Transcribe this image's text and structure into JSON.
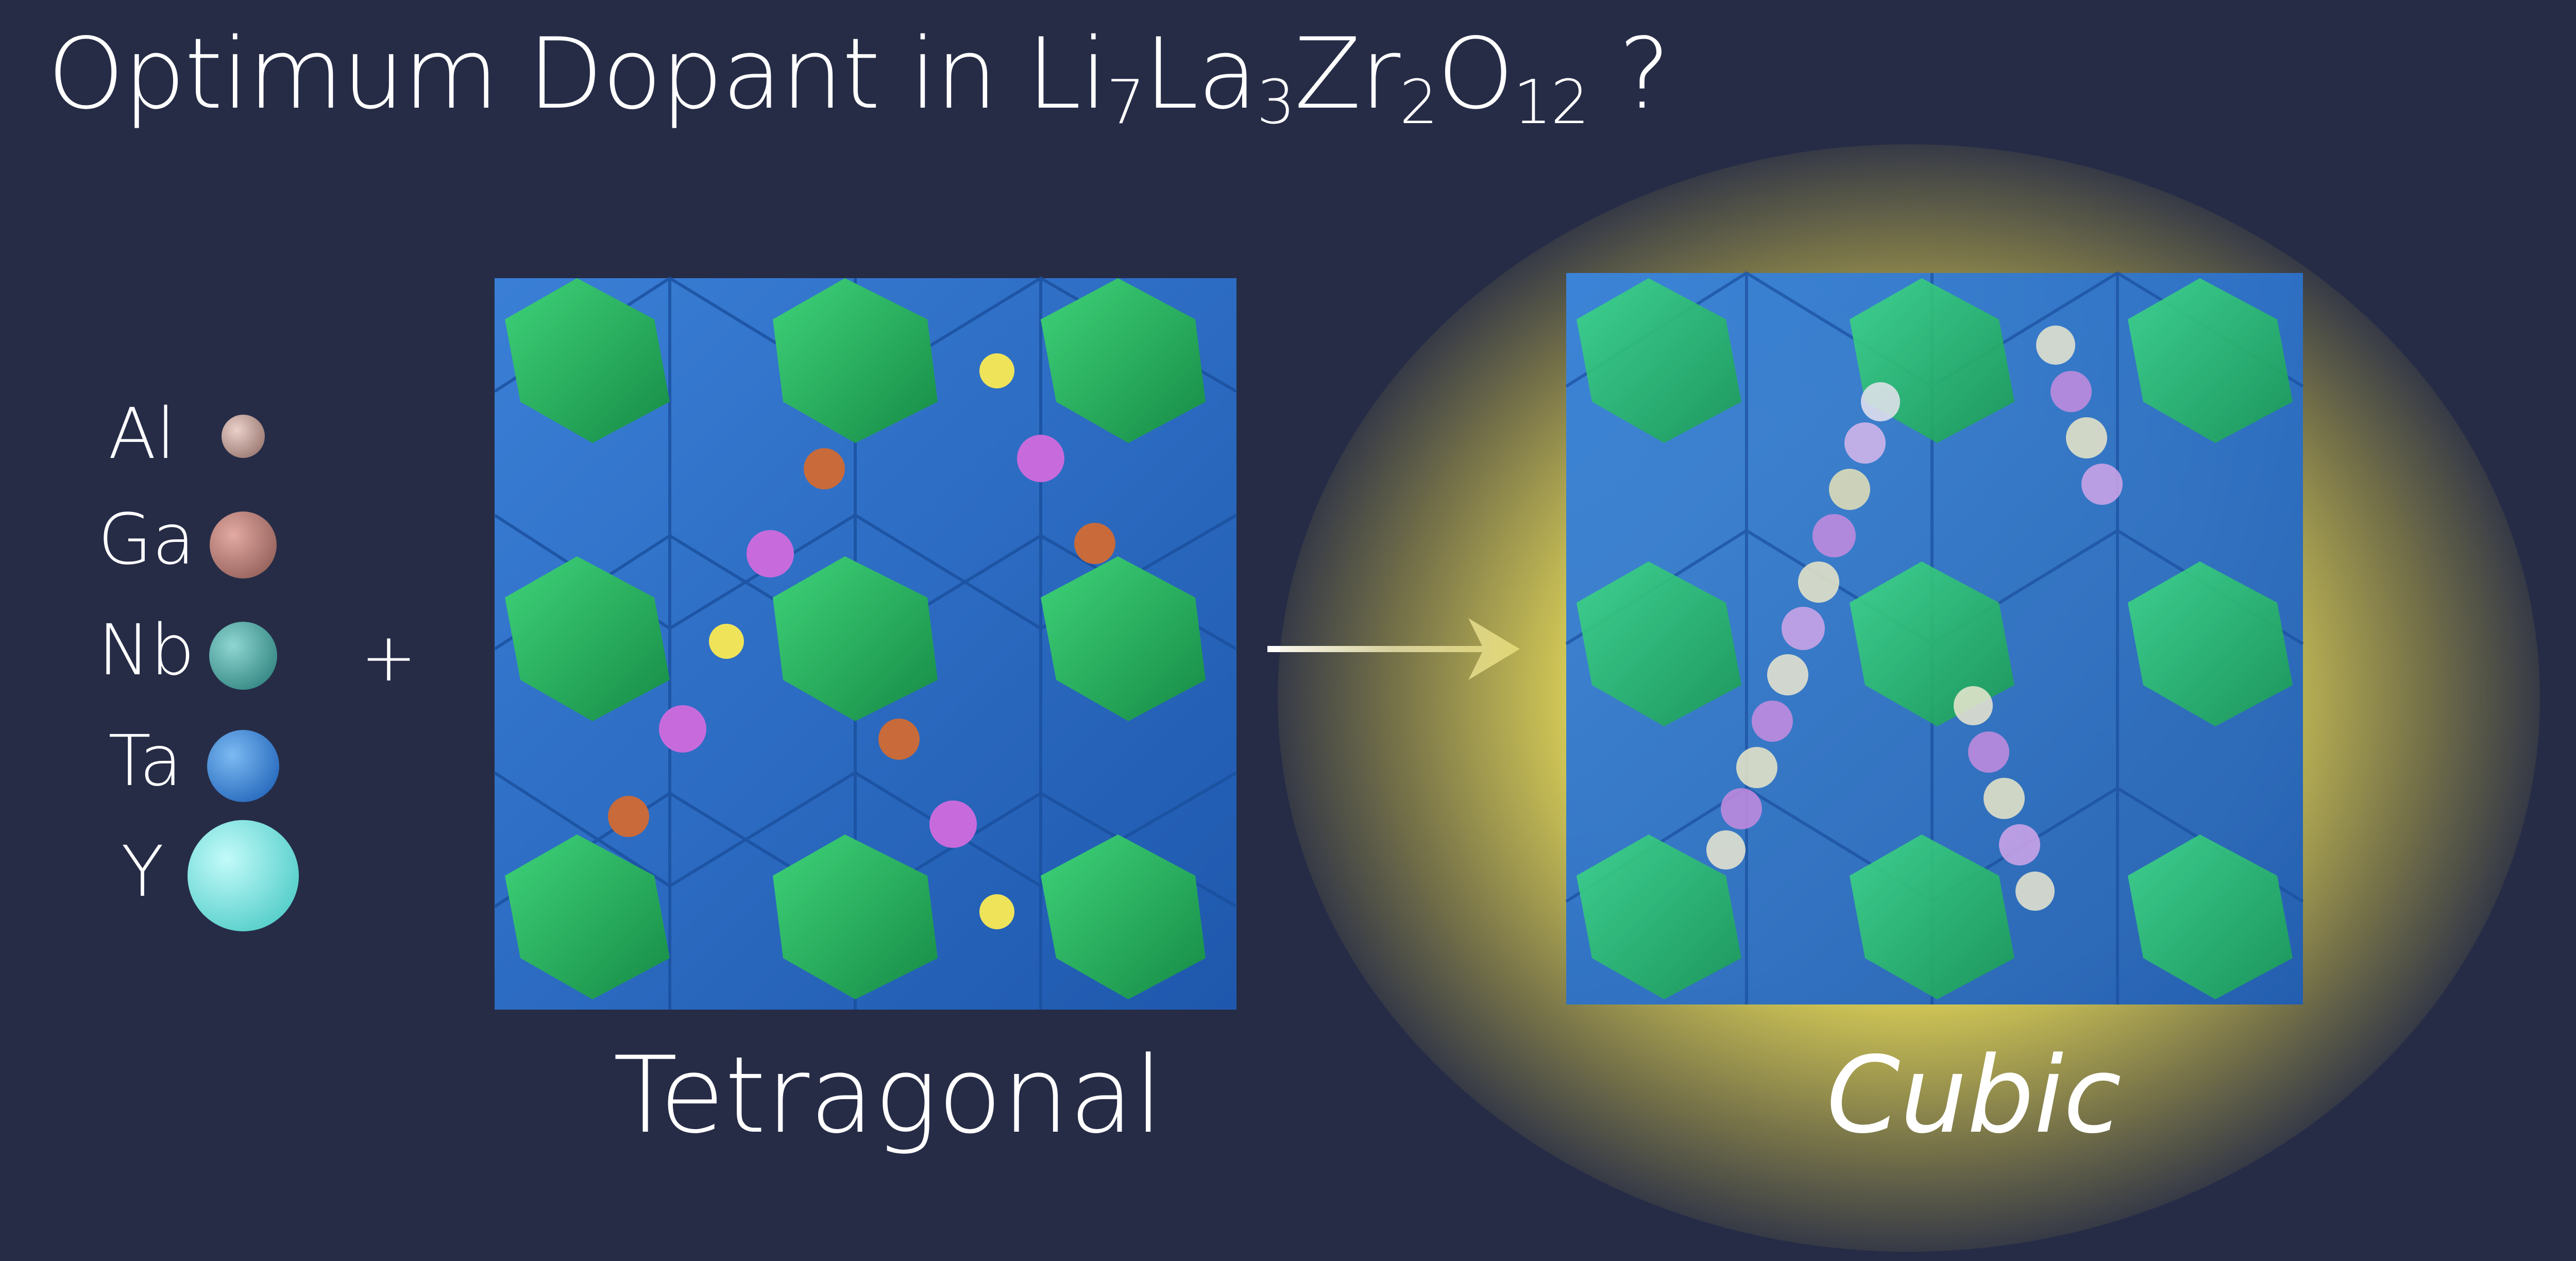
{
  "title": {
    "parts": [
      {
        "text": "Optimum Dopant in Li",
        "sub": "7"
      },
      {
        "text": "La",
        "sub": "3"
      },
      {
        "text": "Zr",
        "sub": "2"
      },
      {
        "text": "O",
        "sub": "12"
      },
      {
        "text": " ?",
        "sub": ""
      }
    ]
  },
  "legend": {
    "items": [
      {
        "label": "Al",
        "color": "#c9a29a"
      },
      {
        "label": "Ga",
        "color": "#c08a82"
      },
      {
        "label": "Nb",
        "color": "#5bb7b2"
      },
      {
        "label": "Ta",
        "color": "#3f90e0"
      },
      {
        "label": "Y",
        "color": "#86f0ee"
      }
    ],
    "plus": "+"
  },
  "panels": {
    "left_label": "Tetragonal",
    "right_label": "Cubic"
  },
  "colors": {
    "background": "#262c46",
    "dodecahedra": "#2b6fc9",
    "octahedra": "#1fb05a",
    "glow": "#e6dc5c",
    "li_pink": "#c76bdc",
    "li_orange": "#c86a3a",
    "li_yellow": "#efe35a"
  },
  "icons": [
    "right-arrow-icon"
  ]
}
